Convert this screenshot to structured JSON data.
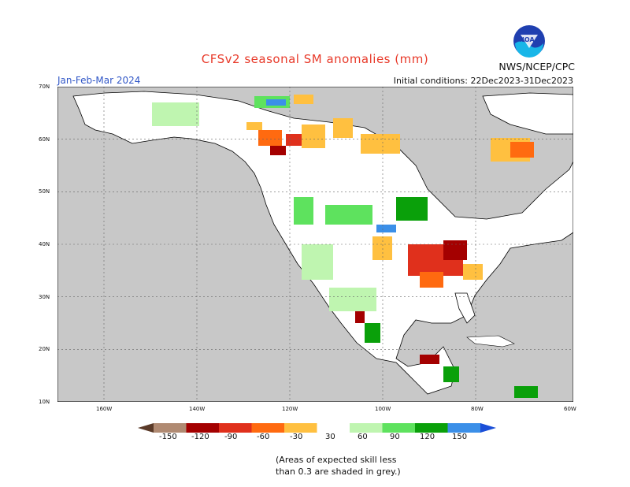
{
  "header": {
    "title": "CFSv2 seasonal SM anomalies (mm)",
    "season": "Jan-Feb-Mar 2024",
    "initial_conditions": "Initial conditions: 22Dec2023-31Dec2023",
    "agency": "NWS/NCEP/CPC",
    "logo_text": "NOAA"
  },
  "map": {
    "region": "North America",
    "lat_labels": [
      "70N",
      "60N",
      "50N",
      "40N",
      "30N",
      "20N",
      "10N"
    ],
    "lon_labels": [
      "160W",
      "140W",
      "120W",
      "100W",
      "80W",
      "60W"
    ],
    "colors": {
      "ocean": "#c8c8c8",
      "land_low_skill": "#c8c8c8",
      "land": "#ffffff",
      "grid": "#666666",
      "border": "#000000"
    }
  },
  "colorbar": {
    "labels": [
      "-150",
      "-120",
      "-90",
      "-60",
      "-30",
      "30",
      "60",
      "90",
      "120",
      "150"
    ],
    "colors": [
      "#5a3a28",
      "#b08a72",
      "#a40000",
      "#e0301c",
      "#ff6a10",
      "#ffc040",
      "#ffffff",
      "#bff5b0",
      "#5ee25e",
      "#0aa00a",
      "#3b8fe8",
      "#1b4fd8"
    ]
  },
  "note": {
    "line1": "(Areas of expected skill less",
    "line2": "than 0.3 are shaded in grey.)"
  }
}
